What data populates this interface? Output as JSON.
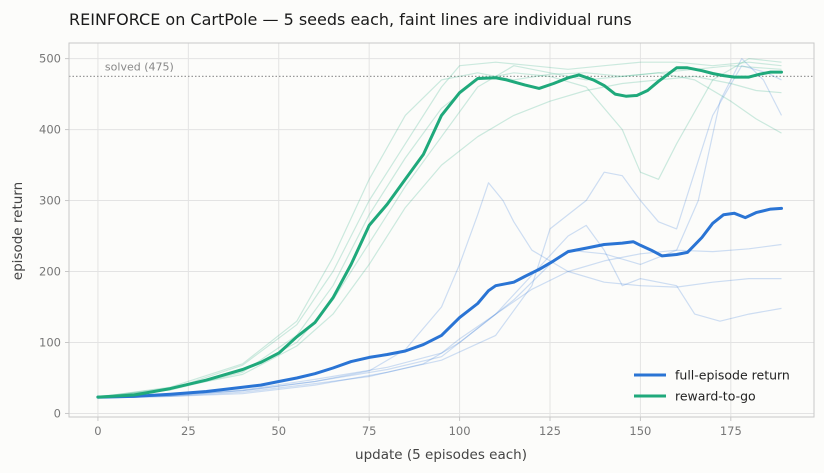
{
  "chart_data": {
    "type": "line",
    "title": "REINFORCE on CartPole — 5 seeds each, faint lines are individual runs",
    "xlabel": "update (5 episodes each)",
    "ylabel": "episode return",
    "xlim": [
      -8,
      198
    ],
    "ylim": [
      -5,
      522
    ],
    "xticks": [
      0,
      25,
      50,
      75,
      100,
      125,
      150,
      175
    ],
    "yticks": [
      0,
      100,
      200,
      300,
      400,
      500
    ],
    "grid": true,
    "legend_position": "lower-right",
    "reference_line": {
      "y": 475,
      "label": "solved (475)",
      "color": "#999999"
    },
    "series": [
      {
        "name": "full-episode return",
        "color": "#2a74d4",
        "points": [
          [
            0,
            23
          ],
          [
            10,
            24
          ],
          [
            20,
            27
          ],
          [
            30,
            31
          ],
          [
            40,
            37
          ],
          [
            45,
            40
          ],
          [
            50,
            45
          ],
          [
            55,
            50
          ],
          [
            60,
            56
          ],
          [
            65,
            64
          ],
          [
            70,
            73
          ],
          [
            75,
            79
          ],
          [
            80,
            83
          ],
          [
            85,
            88
          ],
          [
            90,
            97
          ],
          [
            95,
            110
          ],
          [
            100,
            135
          ],
          [
            105,
            155
          ],
          [
            108,
            173
          ],
          [
            110,
            180
          ],
          [
            115,
            185
          ],
          [
            118,
            193
          ],
          [
            122,
            203
          ],
          [
            126,
            215
          ],
          [
            130,
            228
          ],
          [
            135,
            233
          ],
          [
            140,
            238
          ],
          [
            145,
            240
          ],
          [
            148,
            242
          ],
          [
            150,
            237
          ],
          [
            153,
            230
          ],
          [
            156,
            222
          ],
          [
            160,
            224
          ],
          [
            163,
            227
          ],
          [
            167,
            248
          ],
          [
            170,
            268
          ],
          [
            173,
            280
          ],
          [
            176,
            282
          ],
          [
            179,
            276
          ],
          [
            182,
            283
          ],
          [
            186,
            288
          ],
          [
            189,
            289
          ]
        ],
        "runs": [
          [
            [
              0,
              21
            ],
            [
              20,
              25
            ],
            [
              40,
              32
            ],
            [
              60,
              45
            ],
            [
              75,
              60
            ],
            [
              85,
              90
            ],
            [
              95,
              150
            ],
            [
              100,
              210
            ],
            [
              105,
              280
            ],
            [
              108,
              325
            ],
            [
              112,
              300
            ],
            [
              115,
              270
            ],
            [
              120,
              230
            ],
            [
              130,
              200
            ],
            [
              140,
              185
            ],
            [
              150,
              180
            ],
            [
              160,
              178
            ],
            [
              170,
              185
            ],
            [
              180,
              190
            ],
            [
              189,
              190
            ]
          ],
          [
            [
              0,
              22
            ],
            [
              20,
              24
            ],
            [
              40,
              30
            ],
            [
              60,
              42
            ],
            [
              75,
              52
            ],
            [
              90,
              70
            ],
            [
              100,
              100
            ],
            [
              110,
              140
            ],
            [
              120,
              195
            ],
            [
              130,
              250
            ],
            [
              135,
              265
            ],
            [
              140,
              230
            ],
            [
              145,
              180
            ],
            [
              150,
              190
            ],
            [
              160,
              180
            ],
            [
              165,
              140
            ],
            [
              172,
              130
            ],
            [
              180,
              140
            ],
            [
              189,
              148
            ]
          ],
          [
            [
              0,
              23
            ],
            [
              20,
              26
            ],
            [
              40,
              33
            ],
            [
              60,
              48
            ],
            [
              80,
              65
            ],
            [
              95,
              85
            ],
            [
              100,
              105
            ],
            [
              110,
              140
            ],
            [
              120,
              175
            ],
            [
              130,
              200
            ],
            [
              140,
              215
            ],
            [
              150,
              225
            ],
            [
              160,
              230
            ],
            [
              170,
              228
            ],
            [
              180,
              232
            ],
            [
              189,
              238
            ]
          ],
          [
            [
              0,
              22
            ],
            [
              20,
              24
            ],
            [
              40,
              28
            ],
            [
              60,
              40
            ],
            [
              80,
              58
            ],
            [
              95,
              75
            ],
            [
              110,
              110
            ],
            [
              120,
              180
            ],
            [
              125,
              260
            ],
            [
              135,
              300
            ],
            [
              140,
              340
            ],
            [
              145,
              335
            ],
            [
              150,
              300
            ],
            [
              155,
              270
            ],
            [
              160,
              260
            ],
            [
              170,
              420
            ],
            [
              178,
              490
            ],
            [
              185,
              480
            ],
            [
              189,
              470
            ]
          ],
          [
            [
              0,
              23
            ],
            [
              20,
              25
            ],
            [
              40,
              32
            ],
            [
              60,
              45
            ],
            [
              80,
              62
            ],
            [
              95,
              80
            ],
            [
              105,
              120
            ],
            [
              115,
              160
            ],
            [
              125,
              210
            ],
            [
              130,
              230
            ],
            [
              140,
              225
            ],
            [
              150,
              210
            ],
            [
              160,
              230
            ],
            [
              166,
              300
            ],
            [
              172,
              440
            ],
            [
              178,
              500
            ],
            [
              184,
              470
            ],
            [
              189,
              420
            ]
          ]
        ]
      },
      {
        "name": "reward-to-go",
        "color": "#1fa97b",
        "points": [
          [
            0,
            23
          ],
          [
            10,
            26
          ],
          [
            20,
            35
          ],
          [
            30,
            47
          ],
          [
            40,
            62
          ],
          [
            45,
            72
          ],
          [
            50,
            85
          ],
          [
            55,
            108
          ],
          [
            60,
            128
          ],
          [
            65,
            163
          ],
          [
            70,
            210
          ],
          [
            75,
            265
          ],
          [
            80,
            295
          ],
          [
            85,
            330
          ],
          [
            90,
            365
          ],
          [
            95,
            420
          ],
          [
            100,
            452
          ],
          [
            105,
            472
          ],
          [
            110,
            473
          ],
          [
            113,
            470
          ],
          [
            118,
            463
          ],
          [
            122,
            458
          ],
          [
            126,
            465
          ],
          [
            130,
            473
          ],
          [
            133,
            477
          ],
          [
            137,
            470
          ],
          [
            140,
            462
          ],
          [
            143,
            450
          ],
          [
            146,
            447
          ],
          [
            149,
            448
          ],
          [
            152,
            455
          ],
          [
            155,
            468
          ],
          [
            160,
            487
          ],
          [
            163,
            487
          ],
          [
            167,
            483
          ],
          [
            170,
            479
          ],
          [
            173,
            476
          ],
          [
            176,
            474
          ],
          [
            180,
            474
          ],
          [
            183,
            478
          ],
          [
            186,
            481
          ],
          [
            189,
            481
          ]
        ],
        "runs": [
          [
            [
              0,
              22
            ],
            [
              20,
              34
            ],
            [
              40,
              68
            ],
            [
              55,
              125
            ],
            [
              65,
              200
            ],
            [
              75,
              300
            ],
            [
              85,
              380
            ],
            [
              95,
              460
            ],
            [
              100,
              490
            ],
            [
              110,
              495
            ],
            [
              120,
              490
            ],
            [
              130,
              485
            ],
            [
              140,
              490
            ],
            [
              150,
              495
            ],
            [
              160,
              495
            ],
            [
              170,
              490
            ],
            [
              180,
              495
            ],
            [
              189,
              490
            ]
          ],
          [
            [
              0,
              23
            ],
            [
              20,
              36
            ],
            [
              40,
              60
            ],
            [
              55,
              100
            ],
            [
              65,
              160
            ],
            [
              75,
              240
            ],
            [
              85,
              320
            ],
            [
              95,
              390
            ],
            [
              105,
              460
            ],
            [
              115,
              490
            ],
            [
              125,
              480
            ],
            [
              135,
              470
            ],
            [
              145,
              475
            ],
            [
              155,
              480
            ],
            [
              165,
              485
            ],
            [
              175,
              490
            ],
            [
              189,
              485
            ]
          ],
          [
            [
              0,
              24
            ],
            [
              20,
              33
            ],
            [
              40,
              58
            ],
            [
              55,
              110
            ],
            [
              65,
              180
            ],
            [
              75,
              280
            ],
            [
              85,
              360
            ],
            [
              95,
              430
            ],
            [
              105,
              470
            ],
            [
              115,
              480
            ],
            [
              125,
              475
            ],
            [
              135,
              460
            ],
            [
              145,
              400
            ],
            [
              150,
              340
            ],
            [
              155,
              330
            ],
            [
              160,
              380
            ],
            [
              170,
              470
            ],
            [
              180,
              500
            ],
            [
              189,
              495
            ]
          ],
          [
            [
              0,
              22
            ],
            [
              20,
              35
            ],
            [
              40,
              55
            ],
            [
              55,
              95
            ],
            [
              65,
              140
            ],
            [
              75,
              210
            ],
            [
              85,
              290
            ],
            [
              95,
              350
            ],
            [
              105,
              390
            ],
            [
              115,
              420
            ],
            [
              125,
              440
            ],
            [
              135,
              455
            ],
            [
              145,
              465
            ],
            [
              155,
              470
            ],
            [
              165,
              475
            ],
            [
              175,
              465
            ],
            [
              182,
              455
            ],
            [
              189,
              452
            ]
          ],
          [
            [
              0,
              23
            ],
            [
              20,
              37
            ],
            [
              40,
              70
            ],
            [
              55,
              130
            ],
            [
              65,
              220
            ],
            [
              75,
              330
            ],
            [
              85,
              420
            ],
            [
              95,
              470
            ],
            [
              105,
              480
            ],
            [
              115,
              470
            ],
            [
              125,
              478
            ],
            [
              135,
              480
            ],
            [
              145,
              475
            ],
            [
              155,
              480
            ],
            [
              165,
              470
            ],
            [
              175,
              440
            ],
            [
              182,
              415
            ],
            [
              189,
              395
            ]
          ]
        ]
      }
    ]
  }
}
